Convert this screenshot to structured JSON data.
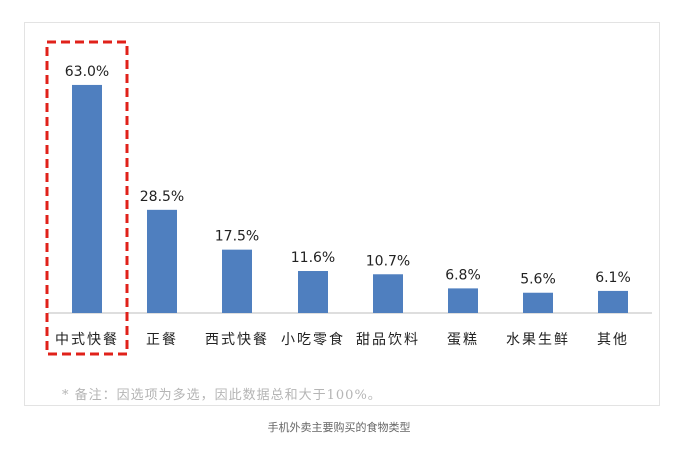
{
  "chart_data": {
    "type": "bar",
    "categories": [
      "中式快餐",
      "正餐",
      "西式快餐",
      "小吃零食",
      "甜品饮料",
      "蛋糕",
      "水果生鲜",
      "其他"
    ],
    "values": [
      63.0,
      28.5,
      17.5,
      11.6,
      10.7,
      6.8,
      5.6,
      6.1
    ],
    "value_labels": [
      "63.0%",
      "28.5%",
      "17.5%",
      "11.6%",
      "10.7%",
      "6.8%",
      "5.6%",
      "6.1%"
    ],
    "ylim": [
      0,
      70
    ],
    "grid": false,
    "legend": "none",
    "highlighted_category": "中式快餐",
    "colors": {
      "bar": "#4f7fbf",
      "highlight": "#e0211a",
      "axis": "#bdbdbd"
    }
  },
  "note": "* 备注：因选项为多选，因此数据总和大于100%。",
  "caption": "手机外卖主要购买的食物类型"
}
